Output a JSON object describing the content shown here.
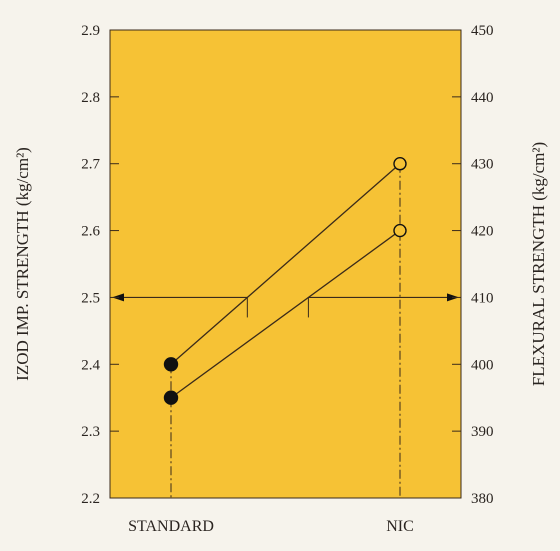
{
  "chart_data": {
    "type": "line",
    "categories": [
      "STANDARD",
      "NIC"
    ],
    "y_left": {
      "label": "IZOD IMP. STRENGTH (kg/cm²)",
      "ylim": [
        2.2,
        2.9
      ],
      "ticks": [
        "2.2",
        "2.3",
        "2.4",
        "2.5",
        "2.6",
        "2.7",
        "2.8",
        "2.9"
      ]
    },
    "y_right": {
      "label": "FLEXURAL STRENGTH (kg/cm²)",
      "ylim": [
        380,
        450
      ],
      "ticks": [
        "380",
        "390",
        "400",
        "410",
        "420",
        "430",
        "440",
        "450"
      ]
    },
    "series": [
      {
        "axis": "left",
        "values": [
          2.4,
          2.7
        ],
        "marker_standard": "filled",
        "marker_nic": "open"
      },
      {
        "axis": "right",
        "values": [
          395,
          420
        ],
        "marker_standard": "filled",
        "marker_nic": "open"
      }
    ],
    "annotations": [
      {
        "type": "arrow",
        "direction": "left",
        "series_index": 0,
        "points_to_axis": "left"
      },
      {
        "type": "arrow",
        "direction": "right",
        "series_index": 1,
        "points_to_axis": "right"
      }
    ],
    "colors": {
      "plot_background": "#f6c235",
      "page_background": "#f6f3ec",
      "line": "#3a2a1a"
    },
    "grid": false
  }
}
